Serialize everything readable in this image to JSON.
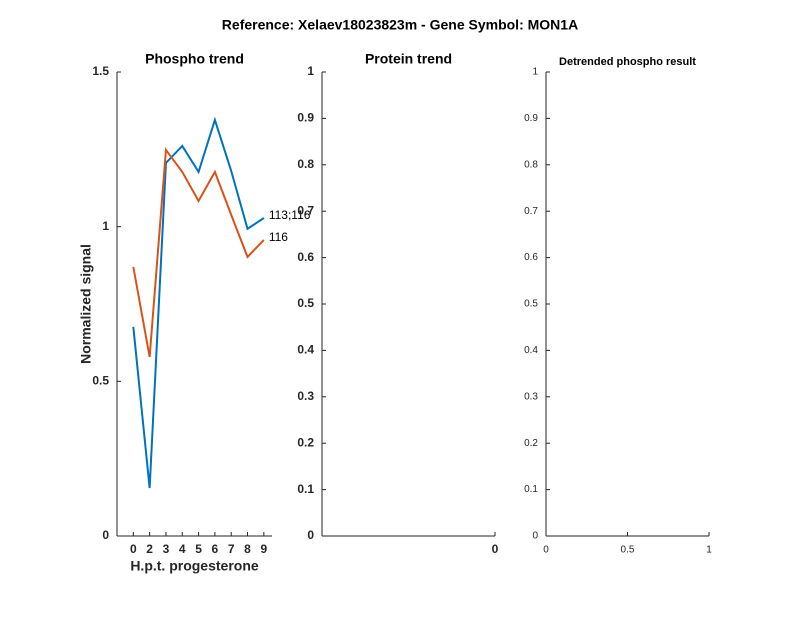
{
  "title": "Reference:  Xelaev18023823m - Gene Symbol:  MON1A",
  "chart_data": [
    {
      "type": "line",
      "title": "Phospho trend",
      "x_label": "H.p.t. progesterone",
      "y_label": "Normalized signal",
      "categories": [
        "0",
        "2",
        "3",
        "4",
        "5",
        "6",
        "7",
        "8",
        "9"
      ],
      "series": [
        {
          "name": "113;116",
          "color": "#0072bd",
          "values": [
            0.676,
            0.155,
            1.206,
            1.261,
            1.177,
            1.345,
            1.18,
            0.993,
            1.028
          ]
        },
        {
          "name": "116",
          "color": "#d95319",
          "values": [
            0.87,
            0.579,
            1.248,
            1.177,
            1.083,
            1.177,
            1.038,
            0.902,
            0.957
          ]
        }
      ],
      "ylim": [
        0,
        1.5
      ],
      "yticks": [
        0,
        0.5,
        1,
        1.5
      ]
    },
    {
      "type": "line",
      "title": "Protein trend",
      "series": [],
      "xticks": [
        0
      ],
      "ylim": [
        0,
        1
      ],
      "yticks": [
        0,
        0.1,
        0.2,
        0.3,
        0.4,
        0.5,
        0.6,
        0.7,
        0.8,
        0.9,
        1
      ]
    },
    {
      "type": "line",
      "title": "Detrended phospho result",
      "series": [],
      "xlim": [
        0,
        1
      ],
      "xticks": [
        0,
        0.5,
        1
      ],
      "ylim": [
        0,
        1
      ],
      "yticks": [
        0,
        0.1,
        0.2,
        0.3,
        0.4,
        0.5,
        0.6,
        0.7,
        0.8,
        0.9,
        1
      ]
    }
  ]
}
